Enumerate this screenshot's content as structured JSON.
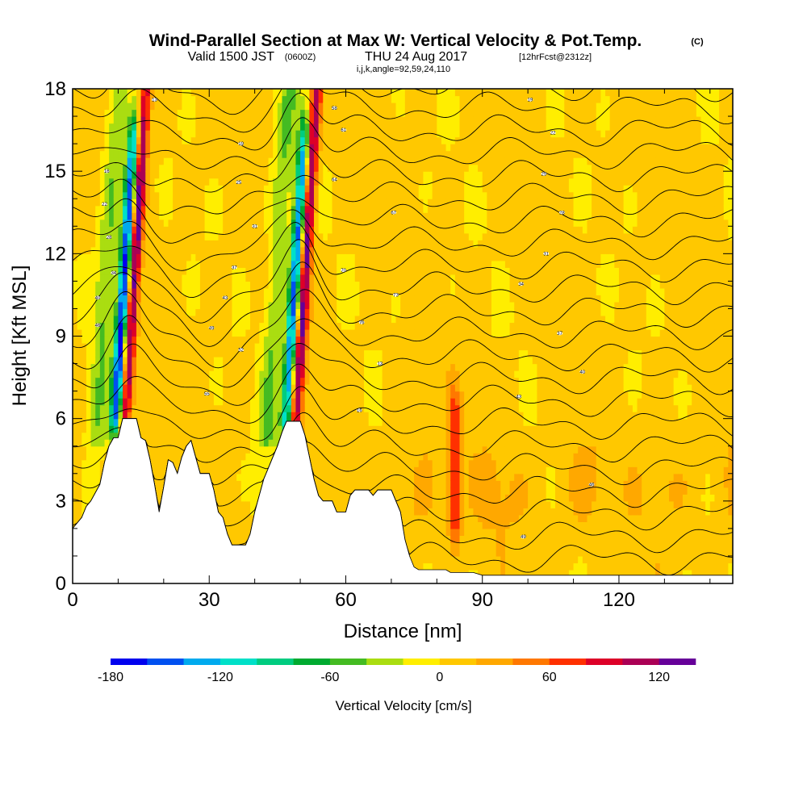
{
  "title": "Wind-Parallel Section at Max W: Vertical Velocity & Pot.Temp.",
  "copyright": "(C)",
  "subtitle_valid": "Valid 1500 JST",
  "subtitle_z": "(0600Z)",
  "subtitle_date": "THU 24 Aug 2017",
  "subtitle_fcst": "[12hrFcst@2312z]",
  "subtitle_ijk": "i,j,k,angle=92,59,24,110",
  "chart_data": {
    "type": "heatmap",
    "xlabel": "Distance [nm]",
    "ylabel": "Height [Kft MSL]",
    "xlim": [
      0,
      145
    ],
    "ylim": [
      0,
      18
    ],
    "x_ticks": [
      "0",
      "30",
      "60",
      "90",
      "120"
    ],
    "y_ticks": [
      "0",
      "3",
      "6",
      "9",
      "12",
      "15",
      "18"
    ],
    "colorbar": {
      "label": "Vertical Velocity [cm/s]",
      "range": [
        -180,
        140
      ],
      "step": 20,
      "tick_labels": [
        "-180",
        "-120",
        "-60",
        "0",
        "60",
        "120"
      ],
      "colors": [
        "#0000ee",
        "#0050f0",
        "#00aaee",
        "#00e0c8",
        "#00cc80",
        "#00aa30",
        "#44bb22",
        "#aadd11",
        "#ffee00",
        "#ffc800",
        "#ffa800",
        "#ff7800",
        "#ff3000",
        "#dd0028",
        "#aa0055",
        "#660099"
      ]
    },
    "updraft_cores": [
      {
        "x_center": 13.0,
        "peak_cm_s": 130,
        "top_kft": 18,
        "base_kft": 6.0,
        "tilt_nm_per_kft": 0.38
      },
      {
        "x_center": 50.5,
        "peak_cm_s": 130,
        "top_kft": 18,
        "base_kft": 6.0,
        "tilt_nm_per_kft": 0.38
      },
      {
        "x_center": 84.0,
        "peak_cm_s": 70,
        "top_kft": 6,
        "base_kft": 2.0,
        "tilt_nm_per_kft": 0.0
      }
    ],
    "downdraft_cores": [
      {
        "x_center": 11.0,
        "min_cm_s": -180,
        "top_kft": 16,
        "base_kft": 6.0,
        "tilt_nm_per_kft": 0.38
      },
      {
        "x_center": 48.5,
        "min_cm_s": -160,
        "top_kft": 16,
        "base_kft": 6.0,
        "tilt_nm_per_kft": 0.38
      }
    ],
    "terrain_kft": [
      [
        0,
        2.0
      ],
      [
        2,
        2.4
      ],
      [
        3,
        2.8
      ],
      [
        4,
        3.0
      ],
      [
        6,
        3.6
      ],
      [
        7,
        4.4
      ],
      [
        8,
        5.0
      ],
      [
        9,
        5.3
      ],
      [
        10,
        5.3
      ],
      [
        11,
        6.0
      ],
      [
        14,
        6.0
      ],
      [
        15,
        5.3
      ],
      [
        16,
        5.2
      ],
      [
        17,
        4.5
      ],
      [
        18,
        3.6
      ],
      [
        19,
        2.6
      ],
      [
        20,
        3.5
      ],
      [
        21,
        4.5
      ],
      [
        22,
        4.4
      ],
      [
        23,
        4.0
      ],
      [
        24,
        4.6
      ],
      [
        25,
        5.0
      ],
      [
        26,
        5.2
      ],
      [
        27,
        4.6
      ],
      [
        28,
        4.0
      ],
      [
        30,
        4.0
      ],
      [
        31,
        3.4
      ],
      [
        32,
        2.6
      ],
      [
        33,
        2.4
      ],
      [
        34,
        1.8
      ],
      [
        35,
        1.4
      ],
      [
        38,
        1.4
      ],
      [
        39,
        1.8
      ],
      [
        40,
        2.6
      ],
      [
        41,
        3.2
      ],
      [
        42,
        3.8
      ],
      [
        43,
        4.2
      ],
      [
        44,
        4.6
      ],
      [
        45,
        5.0
      ],
      [
        46,
        5.5
      ],
      [
        47,
        5.9
      ],
      [
        50,
        5.9
      ],
      [
        51,
        5.4
      ],
      [
        52,
        4.6
      ],
      [
        53,
        3.8
      ],
      [
        54,
        3.2
      ],
      [
        55,
        3.0
      ],
      [
        57,
        3.0
      ],
      [
        58,
        2.6
      ],
      [
        60,
        2.6
      ],
      [
        61,
        3.2
      ],
      [
        62,
        3.4
      ],
      [
        65,
        3.4
      ],
      [
        66,
        3.2
      ],
      [
        67,
        3.4
      ],
      [
        70,
        3.4
      ],
      [
        71,
        3.0
      ],
      [
        72,
        2.6
      ],
      [
        73,
        1.6
      ],
      [
        74,
        1.0
      ],
      [
        75,
        0.6
      ],
      [
        76,
        0.5
      ],
      [
        82,
        0.5
      ],
      [
        83,
        0.4
      ],
      [
        88,
        0.4
      ],
      [
        90,
        0.3
      ],
      [
        145,
        0.3
      ]
    ],
    "theta_contours_k": [
      "13",
      "16",
      "19",
      "22",
      "25",
      "28",
      "31",
      "34",
      "37",
      "40",
      "43",
      "46",
      "49",
      "52",
      "55",
      "58",
      "61",
      "64",
      "67",
      "70",
      "73",
      "76"
    ],
    "theta_label_positions": [
      [
        18,
        17.6
      ],
      [
        7.5,
        15.0
      ],
      [
        37.0,
        16.0
      ],
      [
        7.0,
        13.8
      ],
      [
        36.5,
        14.6
      ],
      [
        8.0,
        12.6
      ],
      [
        40.0,
        13.0
      ],
      [
        9.0,
        11.3
      ],
      [
        35.5,
        11.5
      ],
      [
        5.5,
        10.4
      ],
      [
        33.5,
        10.4
      ],
      [
        5.5,
        9.4
      ],
      [
        30.5,
        9.3
      ],
      [
        37.0,
        8.5
      ],
      [
        29.5,
        6.9
      ],
      [
        57.5,
        17.3
      ],
      [
        59.5,
        16.5
      ],
      [
        57.5,
        14.7
      ],
      [
        70.5,
        13.5
      ],
      [
        59.5,
        11.4
      ],
      [
        71.0,
        10.5
      ],
      [
        63.5,
        9.5
      ],
      [
        67.5,
        8.0
      ],
      [
        63.0,
        6.3
      ],
      [
        100.5,
        17.6
      ],
      [
        105.5,
        16.4
      ],
      [
        103.5,
        14.9
      ],
      [
        107.5,
        13.5
      ],
      [
        104.0,
        12.0
      ],
      [
        98.5,
        10.9
      ],
      [
        107.0,
        9.1
      ],
      [
        112.0,
        7.7
      ],
      [
        98.0,
        6.8
      ],
      [
        114.0,
        3.6
      ],
      [
        99.0,
        1.7
      ]
    ]
  }
}
